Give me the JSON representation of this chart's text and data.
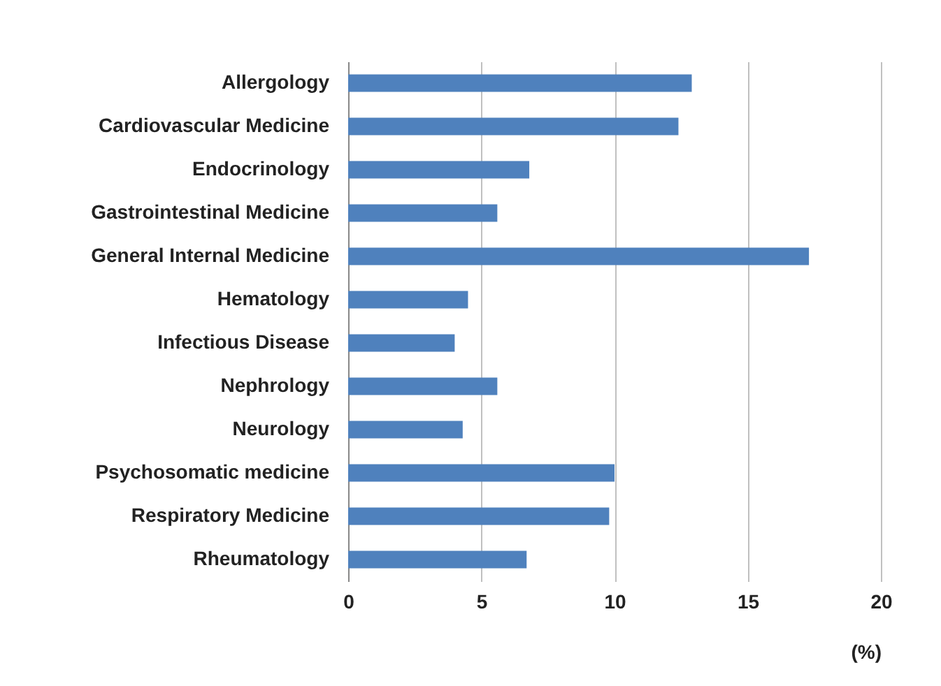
{
  "chart_data": {
    "type": "bar",
    "orientation": "horizontal",
    "xlabel": "(%)",
    "categories": [
      "Allergology",
      "Cardiovascular Medicine",
      "Endocrinology",
      "Gastrointestinal Medicine",
      "General Internal Medicine",
      "Hematology",
      "Infectious Disease",
      "Nephrology",
      "Neurology",
      "Psychosomatic medicine",
      "Respiratory Medicine",
      "Rheumatology"
    ],
    "values": [
      12.9,
      12.4,
      6.8,
      5.6,
      17.3,
      4.5,
      4.0,
      5.6,
      4.3,
      10.0,
      9.8,
      6.7
    ],
    "color": "#4f81bd",
    "xlim": [
      0,
      20
    ],
    "xticks": [
      0,
      5,
      10,
      15,
      20
    ],
    "grid": "x"
  }
}
